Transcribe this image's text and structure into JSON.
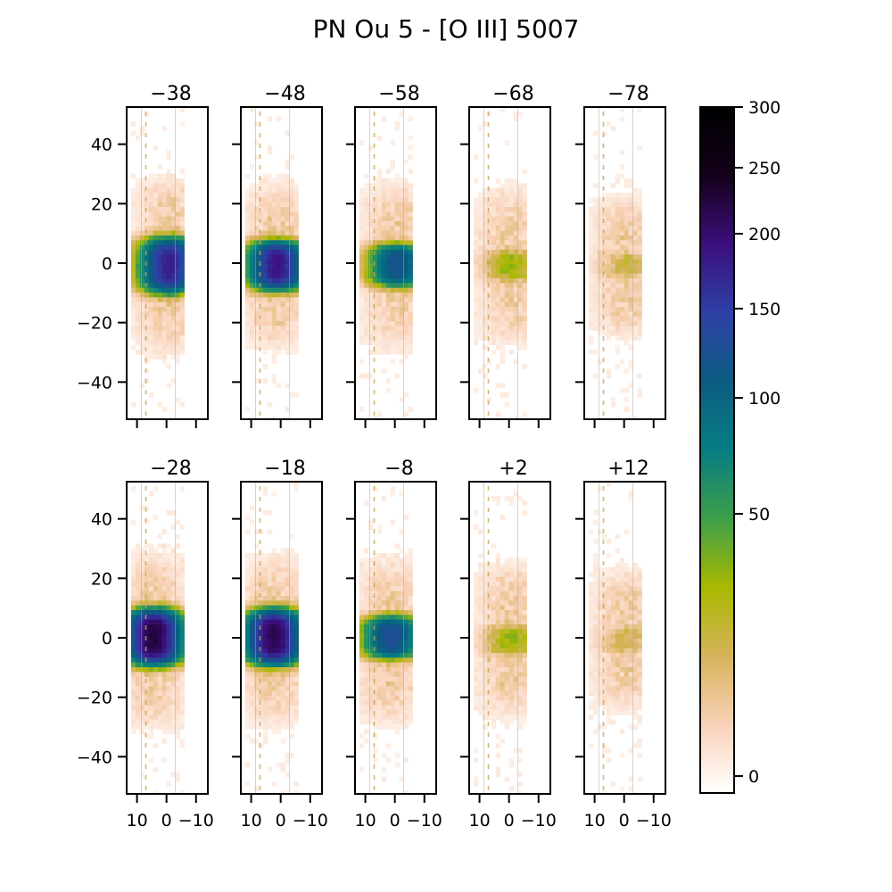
{
  "title": "PN Ou 5 - [O III] 5007",
  "chart_data": {
    "type": "heatmap",
    "title": "PN Ou 5 - [O III] 5007",
    "layout": {
      "rows": 2,
      "cols": 5
    },
    "x_axis": {
      "ticks": [
        10,
        0,
        -10
      ],
      "tick_labels": [
        "10",
        "0",
        "−10"
      ],
      "range": [
        13.5,
        -14
      ],
      "inverted": true,
      "shown_on": "bottom row"
    },
    "y_axis": {
      "ticks": [
        40,
        20,
        0,
        -20,
        -40
      ],
      "tick_labels": [
        "40",
        "20",
        "0",
        "−20",
        "−40"
      ],
      "range": [
        -52.5,
        52.5
      ],
      "shown_on": "first column"
    },
    "colorbar": {
      "ticks": [
        0,
        50,
        100,
        150,
        200,
        250,
        300
      ],
      "tick_labels": [
        "0",
        "50",
        "100",
        "150",
        "200",
        "250",
        "300"
      ],
      "range": [
        -5,
        300
      ],
      "scale": "nonlinear",
      "colormap": [
        "#ffffff",
        "#f9d2b8",
        "#d6b35a",
        "#a8b800",
        "#3d9e49",
        "#067d82",
        "#0b5c80",
        "#2e40a6",
        "#3b0f7d",
        "#14001a",
        "#000000"
      ]
    },
    "panels": [
      {
        "label": "−38",
        "row": 0,
        "col": 0,
        "peak": 165,
        "core_center": 0,
        "core_extent": 9,
        "lobe_extent": 28,
        "peak_x": 0
      },
      {
        "label": "−48",
        "row": 0,
        "col": 1,
        "peak": 175,
        "core_center": 0,
        "core_extent": 8,
        "lobe_extent": 26,
        "peak_x": 2
      },
      {
        "label": "−58",
        "row": 0,
        "col": 2,
        "peak": 110,
        "core_center": 0,
        "core_extent": 7,
        "lobe_extent": 26,
        "peak_x": 0
      },
      {
        "label": "−68",
        "row": 0,
        "col": 3,
        "peak": 25,
        "core_center": 0,
        "core_extent": 5,
        "lobe_extent": 24,
        "peak_x": 0
      },
      {
        "label": "−78",
        "row": 0,
        "col": 4,
        "peak": 12,
        "core_center": 0,
        "core_extent": 4,
        "lobe_extent": 22,
        "peak_x": 0
      },
      {
        "label": "−28",
        "row": 1,
        "col": 0,
        "peak": 215,
        "core_center": 1,
        "core_extent": 9,
        "lobe_extent": 28,
        "peak_x": 5
      },
      {
        "label": "−18",
        "row": 1,
        "col": 1,
        "peak": 205,
        "core_center": 1,
        "core_extent": 9,
        "lobe_extent": 27,
        "peak_x": 3
      },
      {
        "label": "−8",
        "row": 1,
        "col": 2,
        "peak": 120,
        "core_center": 1,
        "core_extent": 7,
        "lobe_extent": 26,
        "peak_x": 2
      },
      {
        "label": "+2",
        "row": 1,
        "col": 3,
        "peak": 25,
        "core_center": 0,
        "core_extent": 5,
        "lobe_extent": 24,
        "peak_x": 0
      },
      {
        "label": "+12",
        "row": 1,
        "col": 4,
        "peak": 12,
        "core_center": 0,
        "core_extent": 4,
        "lobe_extent": 22,
        "peak_x": 0
      }
    ]
  }
}
